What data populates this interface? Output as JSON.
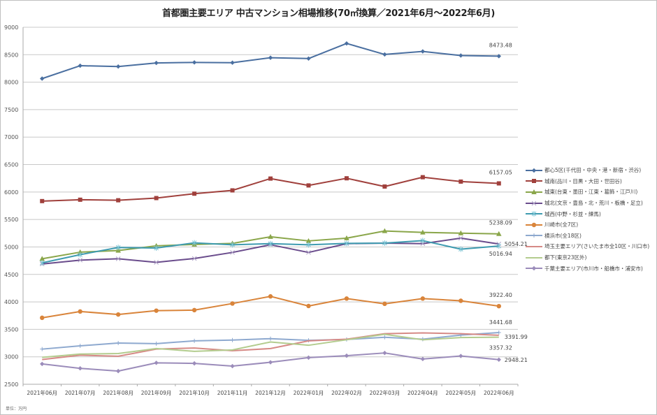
{
  "chart_data": {
    "type": "line",
    "title": "首都圏主要エリア 中古マンション相場推移(70㎡換算／2021年6月～2022年6月)",
    "unit_note": "単位：万円",
    "xlabel": "",
    "ylabel": "",
    "ylim": [
      2500,
      9000
    ],
    "yticks": [
      2500,
      3000,
      3500,
      4000,
      4500,
      5000,
      5500,
      6000,
      6500,
      7000,
      7500,
      8000,
      8500,
      9000
    ],
    "grid": true,
    "legend_position": "right",
    "categories": [
      "2021年06月",
      "2021年07月",
      "2021年08月",
      "2021年09月",
      "2021年10月",
      "2021年11月",
      "2021年12月",
      "2022年01月",
      "2022年02月",
      "2022年03月",
      "2022年04月",
      "2022年05月",
      "2022年06月"
    ],
    "series": [
      {
        "name": "都心5区(千代田・中央・港・新宿・渋谷)",
        "color": "#4a6fa0",
        "marker": "diamond",
        "values": [
          8065,
          8300,
          8285,
          8350,
          8360,
          8355,
          8445,
          8430,
          8705,
          8505,
          8560,
          8485,
          8473.48
        ],
        "end_label": "8473.48"
      },
      {
        "name": "城南(品川・目黒・大田・世田谷)",
        "color": "#a0403c",
        "marker": "square",
        "values": [
          5835,
          5860,
          5850,
          5890,
          5970,
          6030,
          6245,
          6120,
          6250,
          6100,
          6270,
          6190,
          6157.05
        ],
        "end_label": "6157.05"
      },
      {
        "name": "城東(台東・墨田・江東・葛飾・江戸川)",
        "color": "#8aa64a",
        "marker": "triangle",
        "values": [
          4785,
          4905,
          4935,
          5020,
          5045,
          5065,
          5185,
          5110,
          5160,
          5290,
          5265,
          5250,
          5238.09
        ],
        "end_label": "5238.09"
      },
      {
        "name": "城北(文京・豊島・北・荒川・板橋・足立)",
        "color": "#6a4c8c",
        "marker": "x",
        "values": [
          4690,
          4760,
          4785,
          4720,
          4790,
          4900,
          5040,
          4900,
          5060,
          5070,
          5060,
          5160,
          5054.21
        ],
        "end_label": "5054.21"
      },
      {
        "name": "城西(中野・杉並・練馬)",
        "color": "#3e9bb0",
        "marker": "star",
        "values": [
          4710,
          4860,
          4990,
          4980,
          5075,
          5040,
          5060,
          5040,
          5065,
          5070,
          5115,
          4960,
          5016.94
        ],
        "end_label": "5016.94"
      },
      {
        "name": "川崎市(全7区)",
        "color": "#d9843a",
        "marker": "circle",
        "values": [
          3710,
          3825,
          3770,
          3840,
          3850,
          3970,
          4100,
          3925,
          4060,
          3965,
          4060,
          4020,
          3922.4
        ],
        "end_label": "3922.40"
      },
      {
        "name": "横浜市(全18区)",
        "color": "#8ea9cf",
        "marker": "plus",
        "values": [
          3140,
          3200,
          3250,
          3240,
          3290,
          3305,
          3330,
          3300,
          3315,
          3355,
          3320,
          3395,
          3441.68
        ],
        "end_label": "3441.68"
      },
      {
        "name": "埼玉主要エリア(さいたま市全10区・川口市)",
        "color": "#d68a86",
        "marker": "none",
        "values": [
          2950,
          3030,
          3010,
          3140,
          3160,
          3110,
          3150,
          3290,
          3320,
          3420,
          3435,
          3420,
          3391.99
        ],
        "end_label": "3391.99"
      },
      {
        "name": "都下(東京23区外)",
        "color": "#b3cc8e",
        "marker": "none",
        "values": [
          2990,
          3050,
          3060,
          3150,
          3100,
          3125,
          3270,
          3210,
          3310,
          3410,
          3310,
          3350,
          3357.32
        ],
        "end_label": "3357.32"
      },
      {
        "name": "千葉主要エリア(市川市・船橋市・浦安市)",
        "color": "#9b8cba",
        "marker": "diamond",
        "values": [
          2870,
          2790,
          2740,
          2890,
          2880,
          2830,
          2900,
          2985,
          3020,
          3070,
          2960,
          3015,
          2948.21
        ],
        "end_label": "2948.21"
      }
    ]
  }
}
